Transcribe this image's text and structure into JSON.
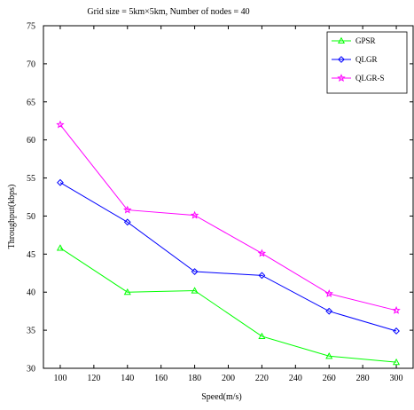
{
  "chart_data": {
    "type": "line",
    "title": "Grid size = 5km×5km, Number of nodes = 40",
    "xlabel": "Speed(m/s)",
    "ylabel": "Throughput(kbps)",
    "xlim": [
      90,
      310
    ],
    "ylim": [
      30,
      75
    ],
    "xticks": [
      100,
      120,
      140,
      160,
      180,
      200,
      220,
      240,
      260,
      280,
      300
    ],
    "yticks": [
      30,
      35,
      40,
      45,
      50,
      55,
      60,
      65,
      70,
      75
    ],
    "x": [
      100,
      140,
      180,
      220,
      260,
      300
    ],
    "grid": false,
    "legend_position": "top-right",
    "series": [
      {
        "name": "GPSR",
        "color": "#00ff00",
        "marker": "triangle",
        "values": [
          45.8,
          40.0,
          40.2,
          34.2,
          31.6,
          30.8
        ]
      },
      {
        "name": "QLGR",
        "color": "#0000ff",
        "marker": "diamond",
        "values": [
          54.4,
          49.2,
          42.7,
          42.2,
          37.5,
          34.9
        ]
      },
      {
        "name": "QLGR-S",
        "color": "#ff00ff",
        "marker": "star",
        "values": [
          62.0,
          50.8,
          50.1,
          45.1,
          39.8,
          37.6
        ]
      }
    ]
  }
}
